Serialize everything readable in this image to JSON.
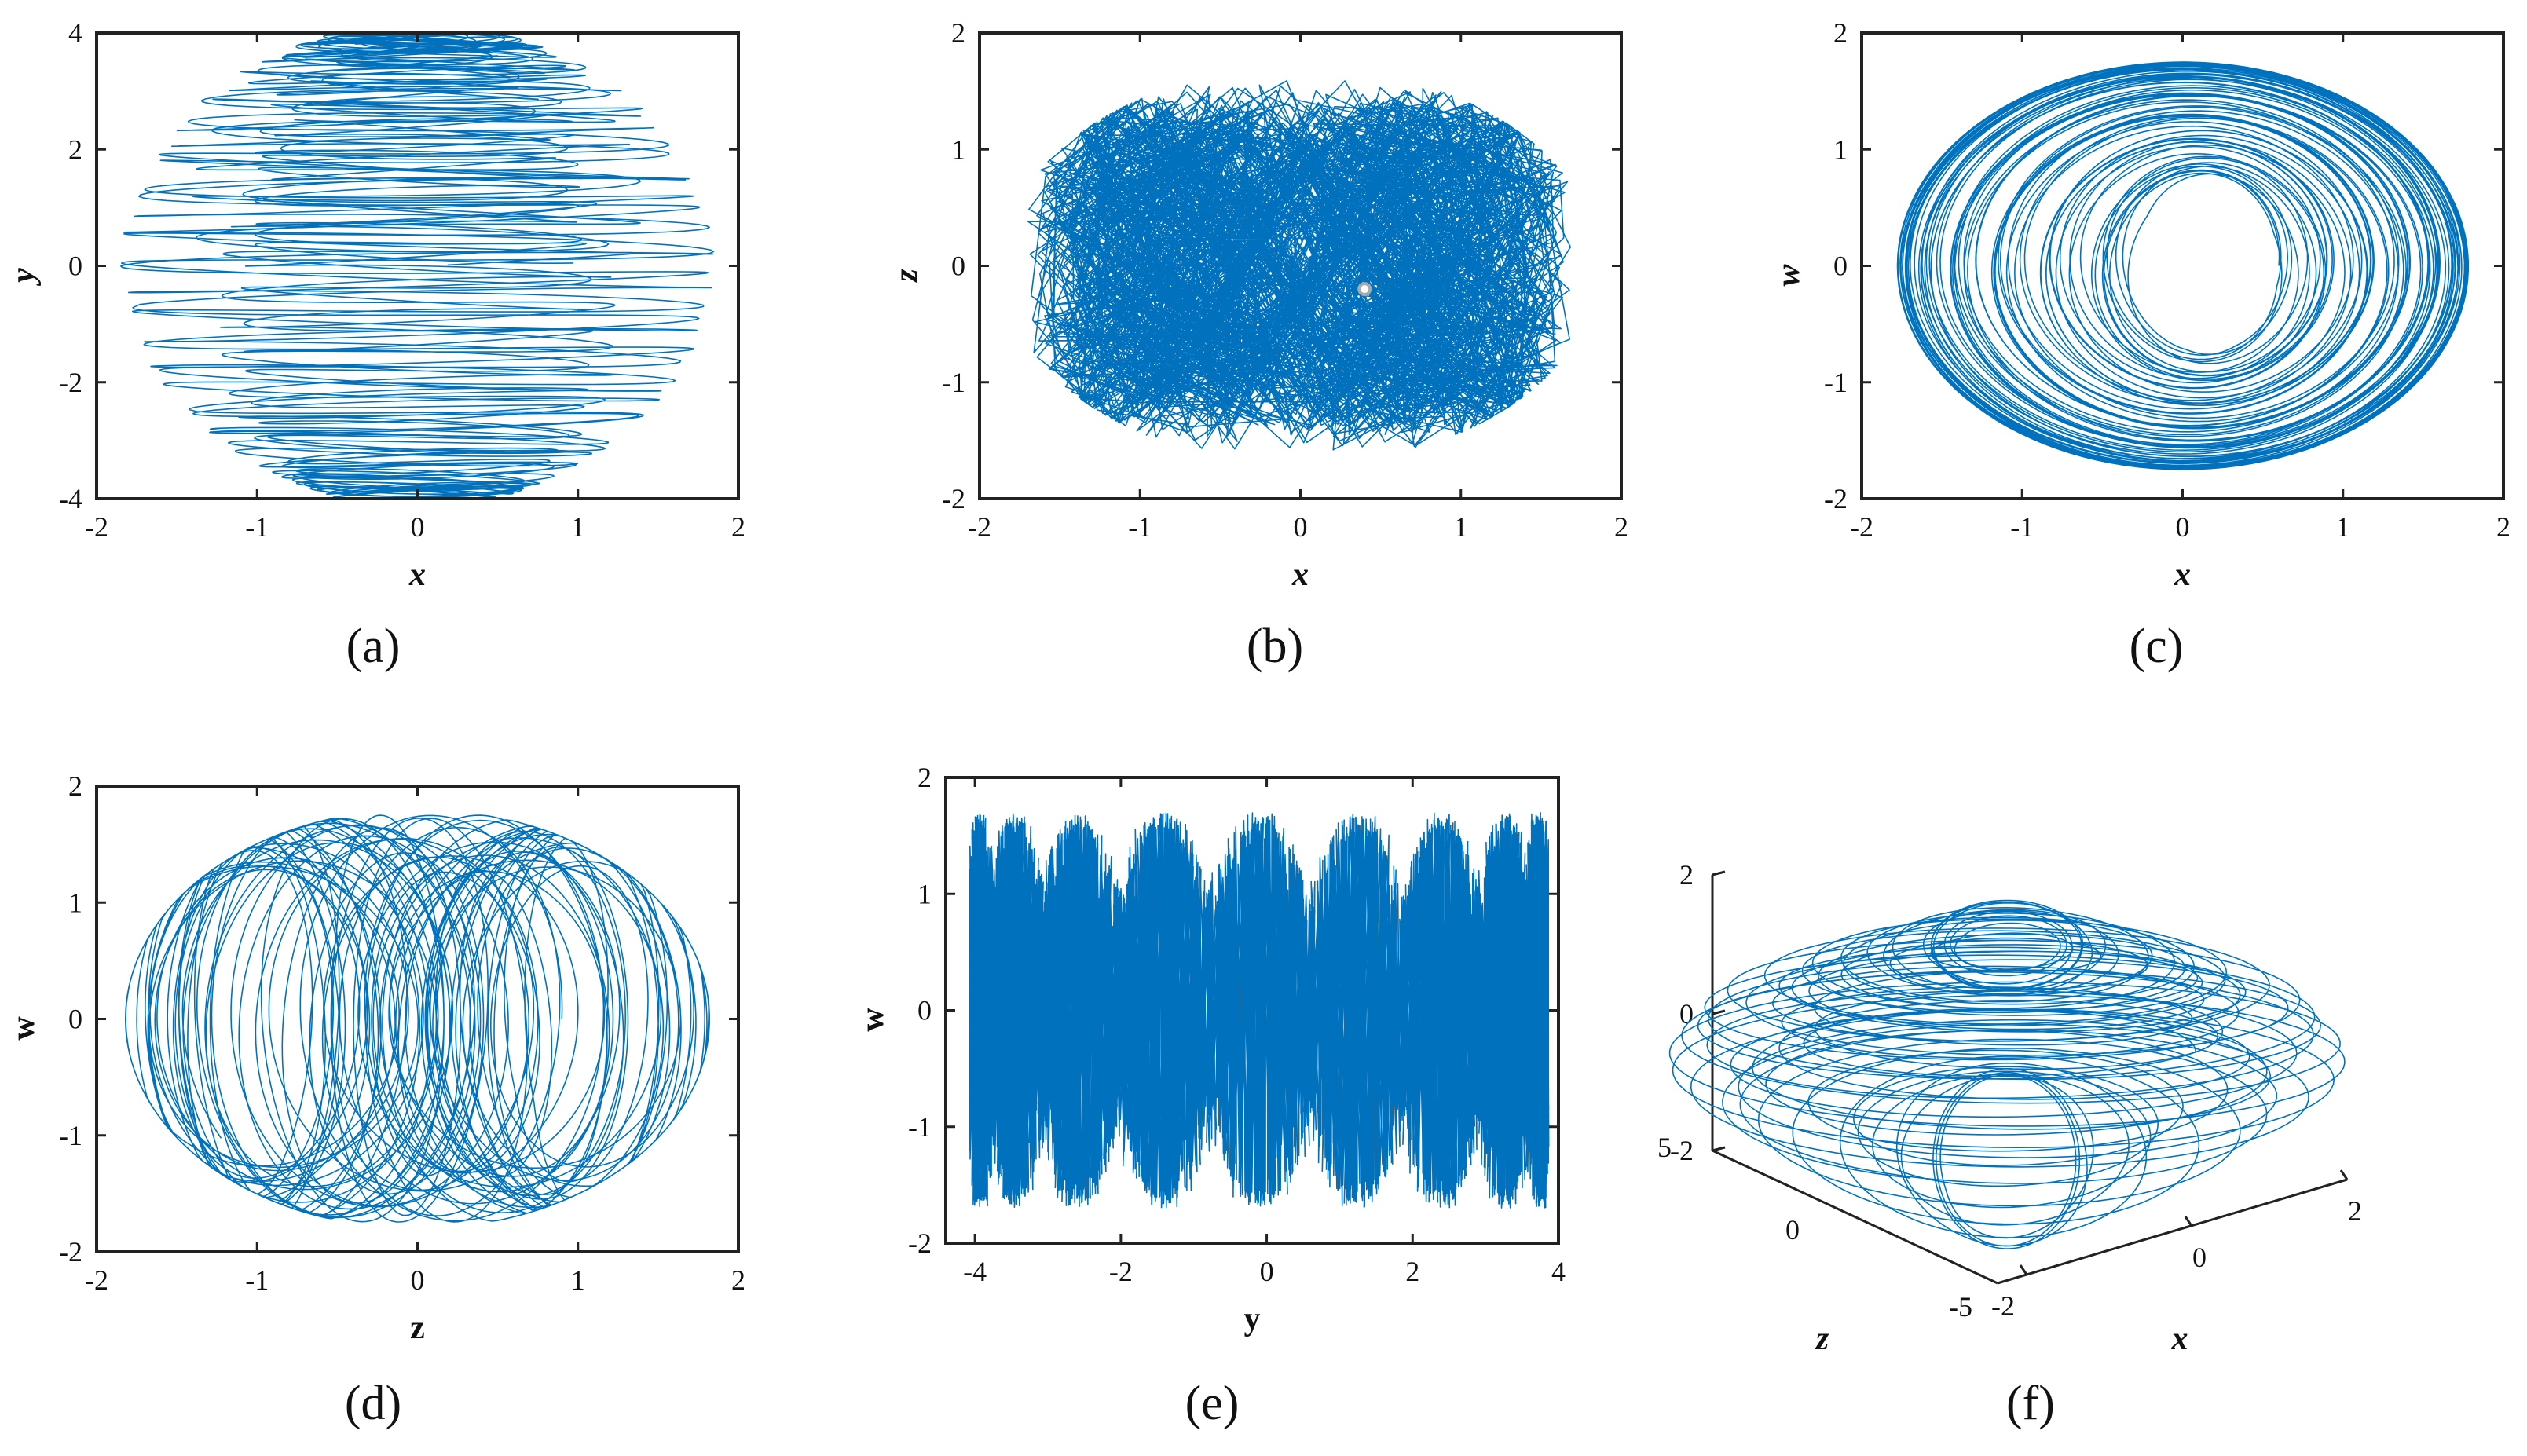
{
  "figure": {
    "title": ""
  },
  "colors": {
    "trajectory": "#0072BD",
    "axes": "#222222",
    "marker": "#aaaaaa"
  },
  "chart_data": [
    {
      "panel": "(a)",
      "type": "line",
      "title": "",
      "xlabel": "x",
      "ylabel": "y",
      "xlim": [
        -2,
        2
      ],
      "ylim": [
        -4,
        4
      ],
      "xticks": [
        "-2",
        "-1",
        "0",
        "1",
        "2"
      ],
      "yticks": [
        "-4",
        "-2",
        "0",
        "2",
        "4"
      ],
      "grid": false,
      "series": [
        {
          "x_range": [
            -1.8,
            1.8
          ],
          "y_range": [
            -4.0,
            3.8
          ],
          "pattern": "dense chaotic phase portrait with horizontal banding"
        }
      ]
    },
    {
      "panel": "(b)",
      "type": "line",
      "title": "",
      "xlabel": "x",
      "ylabel": "z",
      "xlim": [
        -2,
        2
      ],
      "ylim": [
        -2,
        2
      ],
      "xticks": [
        "-2",
        "-1",
        "0",
        "1",
        "2"
      ],
      "yticks": [
        "-2",
        "-1",
        "0",
        "1",
        "2"
      ],
      "grid": false,
      "series": [
        {
          "x_range": [
            -1.8,
            1.8
          ],
          "y_range": [
            -1.8,
            1.8
          ],
          "pattern": "dense chaotic phase portrait"
        }
      ],
      "marker_point": {
        "x": 0.4,
        "y": -0.2
      }
    },
    {
      "panel": "(c)",
      "type": "line",
      "title": "",
      "xlabel": "x",
      "ylabel": "w",
      "xlim": [
        -2,
        2
      ],
      "ylim": [
        -2,
        2
      ],
      "xticks": [
        "-2",
        "-1",
        "0",
        "1",
        "2"
      ],
      "yticks": [
        "-2",
        "-1",
        "0",
        "1",
        "2"
      ],
      "grid": false,
      "series": [
        {
          "x_range": [
            -1.8,
            1.8
          ],
          "y_range": [
            -1.8,
            1.8
          ],
          "pattern": "concentric elliptical loops"
        }
      ]
    },
    {
      "panel": "(d)",
      "type": "line",
      "title": "",
      "xlabel": "z",
      "ylabel": "w",
      "xlim": [
        -2,
        2
      ],
      "ylim": [
        -2,
        2
      ],
      "xticks": [
        "-2",
        "-1",
        "0",
        "1",
        "2"
      ],
      "yticks": [
        "-2",
        "-1",
        "0",
        "1",
        "2"
      ],
      "grid": false,
      "series": [
        {
          "x_range": [
            -1.8,
            1.8
          ],
          "y_range": [
            -1.8,
            1.8
          ],
          "pattern": "overlapping elliptical loops"
        }
      ]
    },
    {
      "panel": "(e)",
      "type": "line",
      "title": "",
      "xlabel": "y",
      "ylabel": "w",
      "xlim": [
        -4.4,
        4
      ],
      "ylim": [
        -2,
        2
      ],
      "xticks": [
        "-4",
        "-2",
        "0",
        "2",
        "4"
      ],
      "yticks": [
        "-2",
        "-1",
        "0",
        "1",
        "2"
      ],
      "grid": false,
      "series": [
        {
          "x_range": [
            -4.0,
            3.8
          ],
          "y_range": [
            -1.8,
            1.8
          ],
          "pattern": "dense vertical oscillation bands"
        }
      ]
    },
    {
      "panel": "(f)",
      "type": "line",
      "title": "",
      "xlabel": "x",
      "ylabel": "z",
      "zlabel": "",
      "projection": "3d",
      "xlim": [
        -2,
        2
      ],
      "ylim": [
        -5,
        5
      ],
      "zlim": [
        -2,
        2
      ],
      "xticks": [
        "-2",
        "0",
        "2"
      ],
      "yticks": [
        "-5",
        "0",
        "5"
      ],
      "zticks": [
        "-2",
        "0",
        "2"
      ],
      "grid": false,
      "series": [
        {
          "x_range": [
            -1.8,
            1.8
          ],
          "y_range": [
            -4.0,
            4.0
          ],
          "z_range": [
            -1.8,
            1.8
          ],
          "pattern": "3D chaotic attractor"
        }
      ]
    }
  ]
}
